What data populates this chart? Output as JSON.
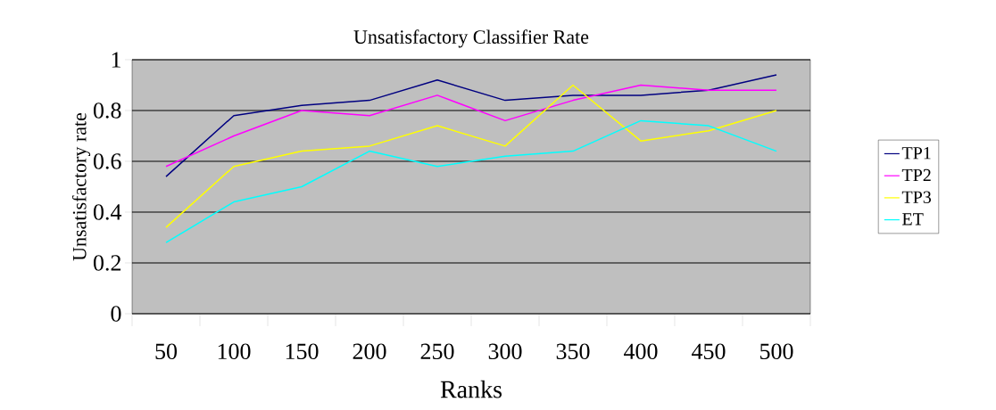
{
  "chart_data": {
    "type": "line",
    "title": "Unsatisfactory Classifier Rate",
    "xlabel": "Ranks",
    "ylabel": "Unsatisfactory rate",
    "categories": [
      "50",
      "100",
      "150",
      "200",
      "250",
      "300",
      "350",
      "400",
      "450",
      "500"
    ],
    "series": [
      {
        "name": "TP1",
        "color": "#000080",
        "values": [
          0.54,
          0.78,
          0.82,
          0.84,
          0.92,
          0.84,
          0.86,
          0.86,
          0.88,
          0.94
        ]
      },
      {
        "name": "TP2",
        "color": "#ff00ff",
        "values": [
          0.58,
          0.7,
          0.8,
          0.78,
          0.86,
          0.76,
          0.84,
          0.9,
          0.88,
          0.88
        ]
      },
      {
        "name": "TP3",
        "color": "#ffff00",
        "values": [
          0.34,
          0.58,
          0.64,
          0.66,
          0.74,
          0.66,
          0.9,
          0.68,
          0.72,
          0.8
        ]
      },
      {
        "name": "ET",
        "color": "#00ffff",
        "values": [
          0.28,
          0.44,
          0.5,
          0.64,
          0.58,
          0.62,
          0.64,
          0.76,
          0.74,
          0.64
        ]
      }
    ],
    "ylim": [
      0,
      1
    ],
    "yticks": [
      0,
      0.2,
      0.4,
      0.6,
      0.8,
      1
    ],
    "grid": "y",
    "legend": "right",
    "marker": "none",
    "line_style": "solid"
  }
}
